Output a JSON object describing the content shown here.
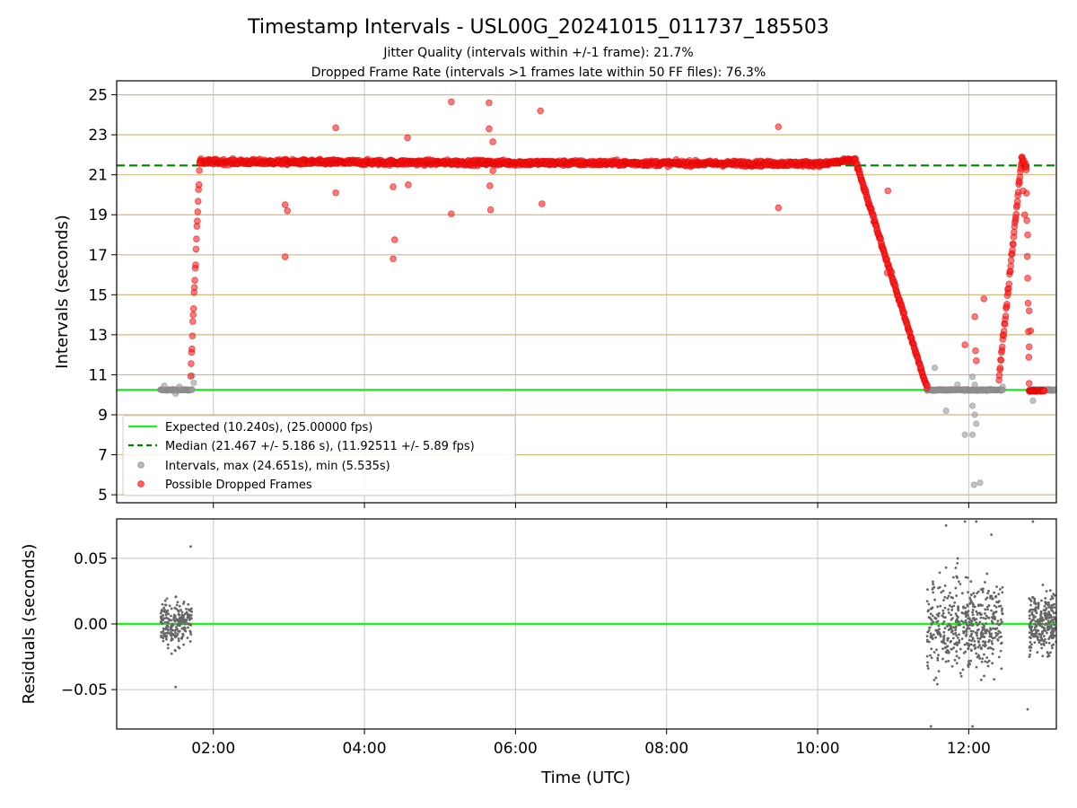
{
  "figure": {
    "title": "Timestamp Intervals - USL00G_20241015_011737_185503",
    "subtitle_line1": "Jitter Quality (intervals within +/-1 frame): 21.7%",
    "subtitle_line2": "Dropped Frame Rate (intervals >1 frames late within 50 FF files): 76.3%"
  },
  "colors": {
    "expected": "#22ee22",
    "median": "#008000",
    "intervals": "#999999",
    "dropped": "#ff2020",
    "residuals": "#666666",
    "hgrid_top": "#d2b97e",
    "grid": "#c8c8c8"
  },
  "chart_data": [
    {
      "type": "scatter",
      "panel": "intervals",
      "xlabel": "",
      "ylabel": "Intervals (seconds)",
      "x_unit": "hours UTC",
      "xlim": [
        0.72,
        13.16
      ],
      "ylim": [
        4.6,
        25.7
      ],
      "yticks": [
        5,
        7,
        9,
        11,
        13,
        15,
        17,
        19,
        21,
        23,
        25
      ],
      "ytick_labels": [
        "5",
        "7",
        "9",
        "11",
        "13",
        "15",
        "17",
        "19",
        "21",
        "23",
        "25"
      ],
      "grid": "horizontal",
      "legend_position": "lower-left",
      "lines": {
        "expected": {
          "label": "Expected (10.240s), (25.00000 fps)",
          "y": 10.24,
          "style": "solid"
        },
        "median": {
          "label": "Median (21.467 +/- 5.186 s), (11.92511 +/- 5.89 fps)",
          "y": 21.467,
          "style": "dashed"
        }
      },
      "series": [
        {
          "name": "Intervals, max (24.651s), min (5.535s)",
          "key": "intervals",
          "segments": [
            {
              "x0": 1.3,
              "x1": 1.72,
              "y": 10.24,
              "noise": 0.07
            },
            {
              "x0": 11.45,
              "x1": 12.45,
              "y": 10.24,
              "noise": 0.07
            },
            {
              "x0": 12.8,
              "x1": 13.16,
              "y": 10.24,
              "noise": 0.07
            }
          ],
          "outliers": [
            [
              1.35,
              10.45
            ],
            [
              1.5,
              10.05
            ],
            [
              1.55,
              10.4
            ],
            [
              1.72,
              10.95
            ],
            [
              1.74,
              10.6
            ],
            [
              11.55,
              11.35
            ],
            [
              11.7,
              9.2
            ],
            [
              11.85,
              10.5
            ],
            [
              11.95,
              8.0
            ],
            [
              12.05,
              8.0
            ],
            [
              12.05,
              10.9
            ],
            [
              12.08,
              10.5
            ],
            [
              12.05,
              9.45
            ],
            [
              12.08,
              9.0
            ],
            [
              12.1,
              8.55
            ],
            [
              12.07,
              5.5
            ],
            [
              12.15,
              5.6
            ],
            [
              12.45,
              10.4
            ],
            [
              12.85,
              9.7
            ]
          ]
        },
        {
          "name": "Possible Dropped Frames",
          "key": "dropped",
          "segments": [
            {
              "x0": 1.82,
              "x1": 10.15,
              "y0": 21.65,
              "y1": 21.55,
              "noise": 0.25
            },
            {
              "x0": 10.15,
              "x1": 10.5,
              "y0": 21.6,
              "y1": 21.75,
              "noise": 0.2
            },
            {
              "x0": 10.5,
              "x1": 11.45,
              "y0": 21.7,
              "y1": 10.3,
              "noise": 0.25
            },
            {
              "x0": 1.7,
              "x1": 1.82,
              "y0": 11.0,
              "y1": 21.7,
              "noise": 0.5
            },
            {
              "x0": 12.4,
              "x1": 12.7,
              "y0": 10.8,
              "y1": 21.8,
              "noise": 0.4
            },
            {
              "x0": 12.7,
              "x1": 12.76,
              "y0": 21.8,
              "y1": 21.4,
              "noise": 0.3
            },
            {
              "x0": 12.76,
              "x1": 12.8,
              "y0": 21.2,
              "y1": 10.5,
              "noise": 0.5
            },
            {
              "x0": 12.8,
              "x1": 13.0,
              "y0": 10.2,
              "y1": 10.2,
              "noise": 0.08
            }
          ],
          "outliers": [
            [
              2.95,
              16.9
            ],
            [
              2.95,
              19.5
            ],
            [
              2.98,
              19.2
            ],
            [
              3.62,
              23.35
            ],
            [
              3.62,
              20.1
            ],
            [
              4.38,
              20.4
            ],
            [
              4.4,
              17.75
            ],
            [
              4.38,
              16.8
            ],
            [
              4.57,
              22.85
            ],
            [
              4.58,
              20.5
            ],
            [
              5.15,
              24.65
            ],
            [
              5.15,
              19.05
            ],
            [
              5.65,
              24.6
            ],
            [
              5.65,
              23.3
            ],
            [
              5.66,
              20.45
            ],
            [
              5.67,
              19.25
            ],
            [
              5.7,
              22.65
            ],
            [
              5.7,
              21.2
            ],
            [
              6.33,
              24.2
            ],
            [
              6.35,
              19.55
            ],
            [
              9.48,
              23.4
            ],
            [
              9.48,
              19.35
            ],
            [
              10.93,
              20.2
            ],
            [
              10.92,
              16.1
            ],
            [
              11.95,
              12.5
            ],
            [
              12.08,
              13.9
            ],
            [
              12.09,
              12.2
            ],
            [
              12.1,
              11.7
            ],
            [
              12.2,
              14.8
            ],
            [
              12.78,
              18.0
            ],
            [
              12.8,
              14.2
            ],
            [
              12.82,
              13.2
            ],
            [
              12.8,
              12.4
            ],
            [
              12.72,
              20.2
            ],
            [
              12.74,
              19.0
            ]
          ]
        }
      ]
    },
    {
      "type": "scatter",
      "panel": "residuals",
      "xlabel": "Time (UTC)",
      "ylabel": "Residuals (seconds)",
      "x_unit": "hours UTC",
      "xlim": [
        0.72,
        13.16
      ],
      "ylim": [
        -0.08,
        0.08
      ],
      "yticks": [
        -0.05,
        0.0,
        0.05
      ],
      "ytick_labels": [
        "−0.05",
        "0.00",
        "0.05"
      ],
      "xticks": [
        2,
        4,
        6,
        8,
        10,
        12
      ],
      "xtick_labels": [
        "02:00",
        "04:00",
        "06:00",
        "08:00",
        "10:00",
        "12:00"
      ],
      "grid": "both",
      "zero_line": 0,
      "series": [
        {
          "key": "residuals",
          "clusters": [
            {
              "x0": 1.3,
              "x1": 1.72,
              "sd": 0.018,
              "n": 220
            },
            {
              "x0": 11.45,
              "x1": 12.45,
              "sd": 0.035,
              "n": 500
            },
            {
              "x0": 12.8,
              "x1": 13.16,
              "sd": 0.022,
              "n": 260
            }
          ],
          "outliers": [
            [
              1.5,
              -0.048
            ],
            [
              1.7,
              0.059
            ],
            [
              11.7,
              0.075
            ],
            [
              11.95,
              0.078
            ],
            [
              12.1,
              0.078
            ],
            [
              12.3,
              0.068
            ],
            [
              11.5,
              -0.078
            ],
            [
              12.05,
              -0.078
            ],
            [
              12.78,
              -0.065
            ],
            [
              12.85,
              0.078
            ]
          ]
        }
      ]
    }
  ]
}
